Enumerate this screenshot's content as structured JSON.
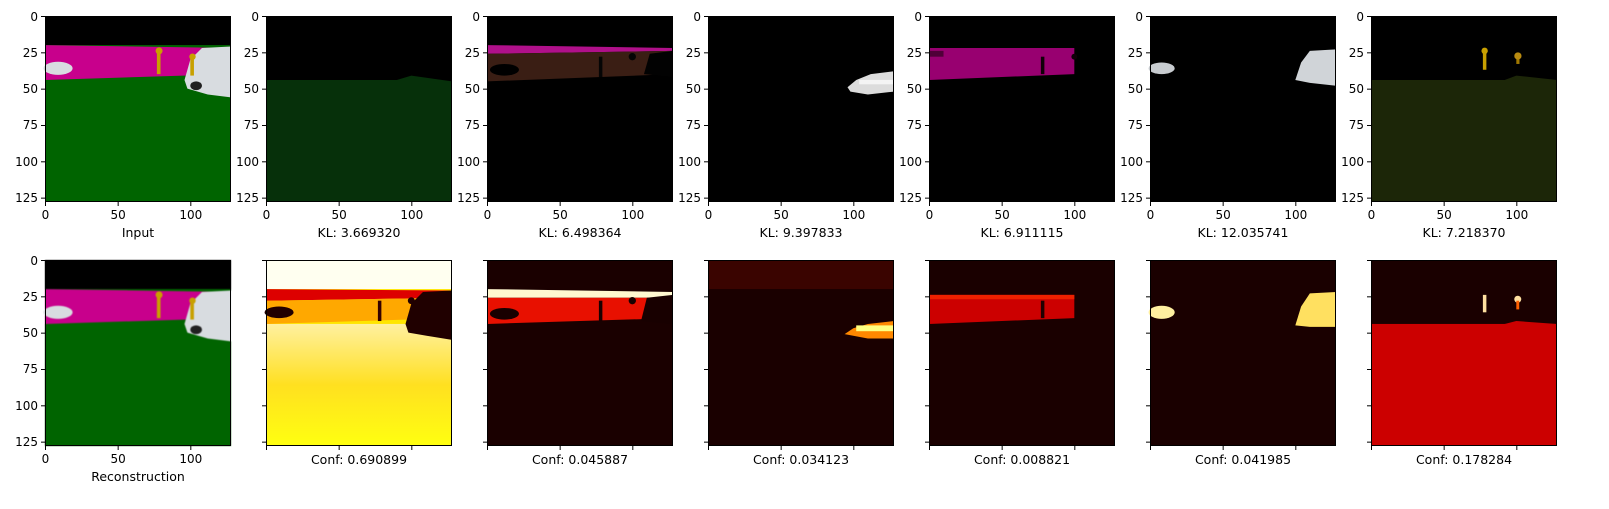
{
  "figure": {
    "rows": [
      {
        "panels": [
          {
            "kind": "segmentation",
            "caption": "Input"
          },
          {
            "kind": "masked",
            "caption": "KL: 3.669320"
          },
          {
            "kind": "masked",
            "caption": "KL: 6.498364"
          },
          {
            "kind": "masked",
            "caption": "KL: 9.397833"
          },
          {
            "kind": "masked",
            "caption": "KL: 6.911115"
          },
          {
            "kind": "masked",
            "caption": "KL: 12.035741"
          },
          {
            "kind": "masked",
            "caption": "KL: 7.218370"
          }
        ]
      },
      {
        "panels": [
          {
            "kind": "segmentation",
            "caption": "Reconstruction"
          },
          {
            "kind": "heatmap",
            "caption": "Conf: 0.690899"
          },
          {
            "kind": "heatmap",
            "caption": "Conf: 0.045887"
          },
          {
            "kind": "heatmap",
            "caption": "Conf: 0.034123"
          },
          {
            "kind": "heatmap",
            "caption": "Conf: 0.008821"
          },
          {
            "kind": "heatmap",
            "caption": "Conf: 0.041985"
          },
          {
            "kind": "heatmap",
            "caption": "Conf: 0.178284"
          }
        ]
      }
    ],
    "axis": {
      "x_ticks": [
        "0",
        "50",
        "100"
      ],
      "x_tick_values": [
        0,
        50,
        100
      ],
      "y_ticks": [
        "0",
        "25",
        "50",
        "75",
        "100",
        "125"
      ],
      "y_tick_values": [
        0,
        25,
        50,
        75,
        100,
        125
      ],
      "range": [
        0,
        128
      ]
    },
    "colors": {
      "sky": "#000000",
      "building": "#c8008c",
      "road": "#006400",
      "car": "#d8dce0",
      "pole": "#c8a000",
      "heat_low": "#1a0000",
      "heat_mid": "#cc0000",
      "heat_high": "#ffff00",
      "heat_max": "#fffff0"
    }
  }
}
